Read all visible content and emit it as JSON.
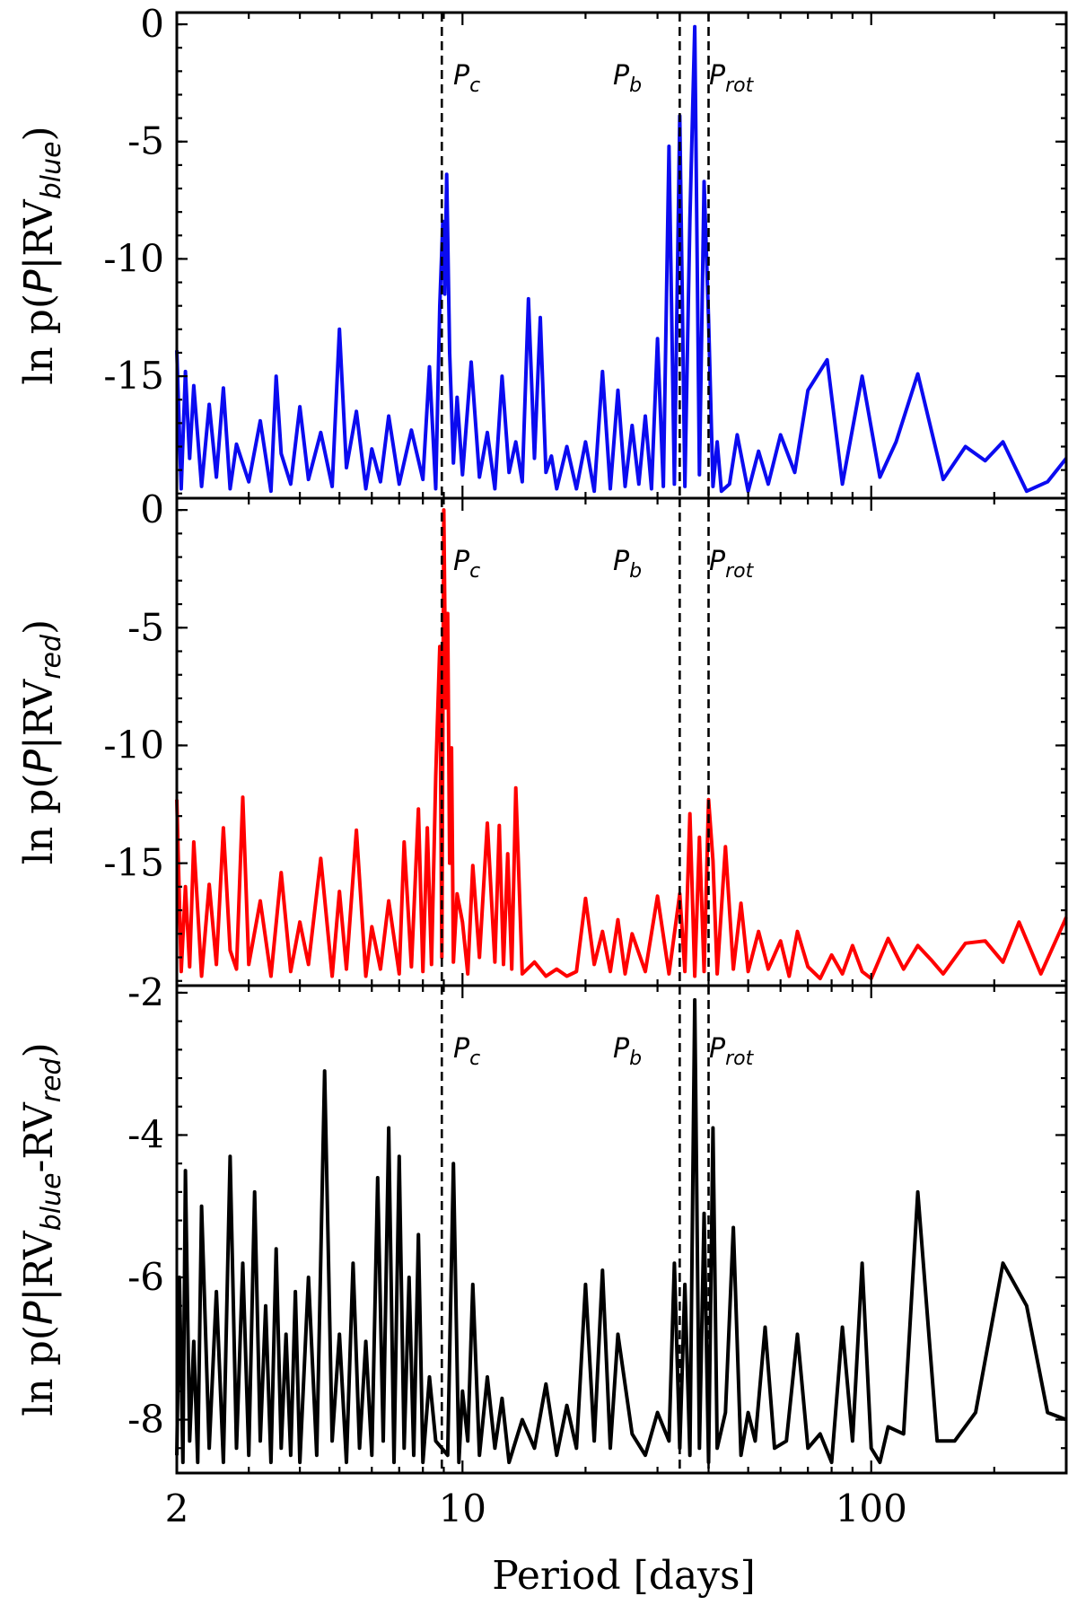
{
  "chart_data": [
    {
      "type": "line",
      "ylabel": "ln p(P|RVblue)",
      "ylabel_parts": {
        "prefix": "ln p(",
        "var": "P",
        "sep": "|RV",
        "sub": "blue",
        "suffix": ")"
      },
      "ylim": [
        -20.2,
        0.5
      ],
      "yticks": [
        0,
        -5,
        -10,
        -15
      ],
      "ytick_labels": [
        "0",
        "-5",
        "-10",
        "-15"
      ],
      "color": "#0b0bf0",
      "series": [
        {
          "name": "RVblue",
          "x": [
            2,
            2.05,
            2.1,
            2.15,
            2.2,
            2.3,
            2.4,
            2.5,
            2.6,
            2.7,
            2.8,
            3.0,
            3.2,
            3.4,
            3.5,
            3.6,
            3.8,
            4.0,
            4.2,
            4.5,
            4.8,
            5.0,
            5.2,
            5.5,
            5.8,
            6.0,
            6.3,
            6.6,
            7.0,
            7.5,
            8.0,
            8.3,
            8.6,
            8.8,
            8.95,
            9.05,
            9.15,
            9.3,
            9.5,
            9.7,
            10.0,
            10.5,
            11.0,
            11.5,
            12.0,
            12.5,
            13.0,
            13.5,
            14.0,
            14.5,
            15.0,
            15.5,
            16.0,
            16.5,
            17.0,
            18.0,
            19.0,
            20.0,
            21.0,
            22.0,
            23.0,
            24.0,
            25.0,
            26.0,
            27.0,
            28.0,
            29.0,
            30.0,
            31.0,
            32.0,
            33.0,
            34.0,
            35.0,
            36.0,
            37.0,
            38.0,
            39.0,
            40.0,
            41.0,
            42.0,
            43.0,
            45.0,
            47.0,
            50.0,
            53.0,
            56.0,
            60.0,
            65.0,
            70.0,
            78.0,
            85.0,
            95.0,
            105.0,
            115.0,
            130.0,
            150.0,
            170.0,
            190.0,
            210.0,
            240.0,
            270.0,
            300.0
          ],
          "values": [
            -13.9,
            -19.8,
            -14.8,
            -18.5,
            -15.4,
            -19.7,
            -16.2,
            -19.3,
            -15.5,
            -19.8,
            -17.9,
            -19.5,
            -16.9,
            -19.9,
            -15.0,
            -18.3,
            -19.6,
            -16.3,
            -19.4,
            -17.4,
            -19.7,
            -13.0,
            -18.9,
            -16.5,
            -19.8,
            -18.1,
            -19.5,
            -16.7,
            -19.6,
            -17.3,
            -19.4,
            -14.6,
            -19.8,
            -12.0,
            -8.4,
            -11.5,
            -6.4,
            -14.0,
            -18.7,
            -15.9,
            -19.2,
            -14.4,
            -19.3,
            -17.4,
            -19.8,
            -15.0,
            -19.1,
            -17.8,
            -19.5,
            -11.7,
            -18.5,
            -12.5,
            -19.1,
            -18.4,
            -19.8,
            -18.0,
            -19.8,
            -17.8,
            -19.9,
            -14.8,
            -19.8,
            -15.6,
            -19.7,
            -17.1,
            -19.6,
            -16.7,
            -19.8,
            -13.4,
            -19.7,
            -5.2,
            -19.6,
            -3.9,
            -19.7,
            -8.3,
            -0.1,
            -19.2,
            -6.7,
            -12.6,
            -19.7,
            -17.8,
            -19.9,
            -19.6,
            -17.5,
            -19.9,
            -18.2,
            -19.6,
            -17.5,
            -19.1,
            -15.6,
            -14.3,
            -19.6,
            -15.0,
            -19.3,
            -17.8,
            -14.9,
            -19.4,
            -18.0,
            -18.6,
            -17.8,
            -19.9,
            -19.5,
            -18.5
          ]
        }
      ],
      "period_labels": [
        {
          "sym": "P",
          "sub": "c"
        },
        {
          "sym": "P",
          "sub": "b"
        },
        {
          "sym": "P",
          "sub": "rot"
        }
      ]
    },
    {
      "type": "line",
      "ylabel": "ln p(P|RVred)",
      "ylabel_parts": {
        "prefix": "ln p(",
        "var": "P",
        "sep": "|RV",
        "sub": "red",
        "suffix": ")"
      },
      "ylim": [
        -20.2,
        0.5
      ],
      "yticks": [
        0,
        -5,
        -10,
        -15
      ],
      "ytick_labels": [
        "0",
        "-5",
        "-10",
        "-15"
      ],
      "color": "#ff0000",
      "series": [
        {
          "name": "RVred",
          "x": [
            2,
            2.05,
            2.1,
            2.15,
            2.2,
            2.3,
            2.4,
            2.5,
            2.6,
            2.7,
            2.8,
            2.9,
            3.0,
            3.2,
            3.4,
            3.6,
            3.8,
            4.0,
            4.2,
            4.5,
            4.8,
            5.0,
            5.2,
            5.5,
            5.8,
            6.0,
            6.3,
            6.6,
            7.0,
            7.2,
            7.5,
            7.8,
            8.0,
            8.2,
            8.4,
            8.6,
            8.8,
            8.9,
            9.0,
            9.1,
            9.2,
            9.3,
            9.4,
            9.5,
            9.7,
            10.0,
            10.3,
            10.6,
            11.0,
            11.5,
            12.0,
            12.3,
            12.6,
            12.9,
            13.2,
            13.5,
            14.0,
            15.0,
            16.0,
            17.0,
            18.0,
            19.0,
            20.0,
            21.0,
            22.0,
            23.0,
            24.0,
            25.0,
            26.0,
            28.0,
            30.0,
            32.0,
            34.0,
            35.0,
            36.0,
            37.0,
            38.0,
            39.0,
            40.0,
            41.0,
            42.0,
            44.0,
            46.0,
            48.0,
            50.0,
            53.0,
            56.0,
            60.0,
            63.0,
            66.0,
            70.0,
            75.0,
            80.0,
            85.0,
            90.0,
            95.0,
            100.0,
            110.0,
            120.0,
            130.0,
            140.0,
            150.0,
            170.0,
            190.0,
            210.0,
            230.0,
            260.0,
            300.0
          ],
          "values": [
            -12.3,
            -19.6,
            -16.0,
            -19.4,
            -14.1,
            -19.8,
            -15.9,
            -19.3,
            -13.5,
            -18.7,
            -19.5,
            -12.2,
            -19.3,
            -16.6,
            -19.8,
            -15.4,
            -19.6,
            -17.5,
            -19.3,
            -14.8,
            -19.8,
            -16.2,
            -19.5,
            -13.6,
            -19.8,
            -17.7,
            -19.5,
            -16.6,
            -19.7,
            -14.1,
            -19.4,
            -12.7,
            -19.6,
            -13.5,
            -19.3,
            -11.3,
            -5.8,
            -19.0,
            0.0,
            -8.4,
            -4.4,
            -15.0,
            -10.1,
            -19.2,
            -16.3,
            -17.5,
            -19.7,
            -15.1,
            -19.0,
            -13.3,
            -19.2,
            -13.4,
            -19.3,
            -14.6,
            -19.5,
            -11.8,
            -19.7,
            -19.2,
            -19.8,
            -19.5,
            -19.8,
            -19.6,
            -16.5,
            -19.3,
            -17.9,
            -19.6,
            -17.4,
            -19.7,
            -18.0,
            -19.6,
            -16.4,
            -19.7,
            -16.3,
            -19.6,
            -12.9,
            -19.8,
            -13.9,
            -19.6,
            -12.3,
            -14.9,
            -19.7,
            -14.3,
            -19.5,
            -16.7,
            -19.6,
            -17.9,
            -19.5,
            -18.3,
            -19.8,
            -17.9,
            -19.4,
            -19.9,
            -18.9,
            -19.7,
            -18.5,
            -19.6,
            -19.9,
            -18.2,
            -19.5,
            -18.5,
            -19.1,
            -19.7,
            -18.4,
            -18.3,
            -19.2,
            -17.5,
            -19.7,
            -17.3
          ]
        }
      ],
      "period_labels": [
        {
          "sym": "P",
          "sub": "c"
        },
        {
          "sym": "P",
          "sub": "b"
        },
        {
          "sym": "P",
          "sub": "rot"
        }
      ]
    },
    {
      "type": "line",
      "ylabel": "ln p(P|RVblue-RVred)",
      "ylabel_parts": {
        "prefix": "ln p(",
        "var": "P",
        "sep": "|RV",
        "sub": "blue",
        "mid": "-RV",
        "sub2": "red",
        "suffix": ")"
      },
      "ylim": [
        -8.75,
        -1.9
      ],
      "yticks": [
        -2,
        -4,
        -6,
        -8
      ],
      "ytick_labels": [
        "-2",
        "-4",
        "-6",
        "-8"
      ],
      "color": "#000000",
      "xlabel": "Period [days]",
      "xticks": [
        2,
        10,
        100
      ],
      "xtick_labels": [
        "2",
        "10",
        "100"
      ],
      "series": [
        {
          "name": "RVblue-RVred",
          "x": [
            2,
            2.03,
            2.07,
            2.1,
            2.15,
            2.2,
            2.25,
            2.3,
            2.4,
            2.5,
            2.6,
            2.7,
            2.8,
            2.9,
            3.0,
            3.1,
            3.2,
            3.3,
            3.4,
            3.5,
            3.6,
            3.7,
            3.8,
            3.9,
            4.0,
            4.2,
            4.4,
            4.6,
            4.8,
            5.0,
            5.2,
            5.4,
            5.6,
            5.8,
            6.0,
            6.2,
            6.4,
            6.6,
            6.8,
            7.0,
            7.2,
            7.4,
            7.6,
            7.8,
            8.0,
            8.3,
            8.6,
            8.9,
            9.2,
            9.5,
            9.8,
            10.0,
            10.3,
            10.6,
            11.0,
            11.5,
            12.0,
            12.5,
            13.0,
            14.0,
            15.0,
            16.0,
            17.0,
            18.0,
            19.0,
            20.0,
            21.0,
            22.0,
            23.0,
            24.0,
            26.0,
            28.0,
            30.0,
            32.0,
            33.0,
            34.0,
            35.0,
            36.0,
            37.0,
            38.0,
            39.0,
            40.0,
            41.0,
            42.0,
            44.0,
            46.0,
            48.0,
            50.0,
            52.0,
            55.0,
            58.0,
            62.0,
            66.0,
            70.0,
            75.0,
            80.0,
            85.0,
            90.0,
            95.0,
            100.0,
            105.0,
            110.0,
            120.0,
            130.0,
            145.0,
            160.0,
            180.0,
            210.0,
            240.0,
            270.0,
            300.0
          ],
          "values": [
            -8.5,
            -6.0,
            -8.6,
            -4.5,
            -8.3,
            -6.9,
            -8.6,
            -5.0,
            -8.4,
            -6.2,
            -8.6,
            -4.3,
            -8.4,
            -5.8,
            -8.5,
            -4.8,
            -8.3,
            -6.4,
            -8.6,
            -5.6,
            -8.4,
            -6.8,
            -8.5,
            -6.2,
            -8.6,
            -6.0,
            -8.5,
            -3.1,
            -8.3,
            -6.8,
            -8.6,
            -5.8,
            -8.4,
            -6.9,
            -8.5,
            -4.6,
            -8.3,
            -3.9,
            -8.6,
            -4.3,
            -8.4,
            -6.0,
            -8.5,
            -5.4,
            -8.6,
            -7.4,
            -8.3,
            -8.4,
            -8.5,
            -4.4,
            -8.6,
            -7.6,
            -8.3,
            -6.1,
            -8.5,
            -7.4,
            -8.4,
            -7.7,
            -8.6,
            -8.0,
            -8.4,
            -7.5,
            -8.5,
            -7.8,
            -8.4,
            -6.1,
            -8.3,
            -5.9,
            -8.4,
            -6.8,
            -8.2,
            -8.5,
            -7.9,
            -8.3,
            -5.8,
            -8.4,
            -6.1,
            -8.5,
            -2.1,
            -8.4,
            -5.1,
            -8.6,
            -3.9,
            -8.4,
            -7.9,
            -5.3,
            -8.5,
            -7.9,
            -8.3,
            -6.7,
            -8.4,
            -8.3,
            -6.8,
            -8.4,
            -8.2,
            -8.6,
            -6.7,
            -8.3,
            -5.8,
            -8.4,
            -8.6,
            -8.1,
            -8.2,
            -4.8,
            -8.3,
            -8.3,
            -7.9,
            -5.8,
            -6.4,
            -7.9,
            -8.0
          ]
        }
      ],
      "period_labels": [
        {
          "sym": "P",
          "sub": "c"
        },
        {
          "sym": "P",
          "sub": "b"
        },
        {
          "sym": "P",
          "sub": "rot"
        }
      ]
    }
  ],
  "reference_periods": {
    "P_c": 8.9,
    "P_b": 34.0,
    "P_rot": 40.0
  },
  "xlim": [
    2,
    300
  ]
}
